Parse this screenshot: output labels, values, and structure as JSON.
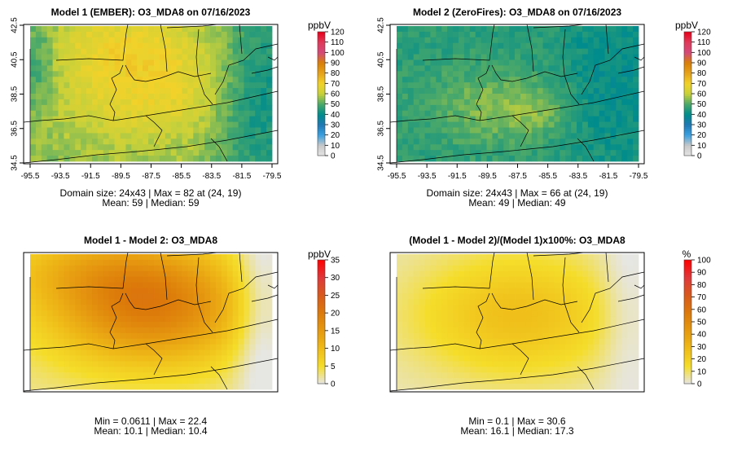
{
  "chart_data": [
    {
      "type": "heatmap",
      "title": "Model 1 (EMBER): O3_MDA8 on 07/16/2023",
      "unit": "ppbV",
      "colorbar_ticks": [
        "0",
        "10",
        "20",
        "30",
        "40",
        "50",
        "60",
        "70",
        "80",
        "90",
        "100",
        "110",
        "120"
      ],
      "xticks": [
        "-95.5",
        "-93.5",
        "-91.5",
        "-89.5",
        "-87.5",
        "-85.5",
        "-83.5",
        "-81.5",
        "-79.5"
      ],
      "yticks": [
        "34.5",
        "36.5",
        "38.5",
        "40.5",
        "42.5"
      ],
      "xlim": [
        -95.5,
        -79.5
      ],
      "ylim": [
        34.5,
        42.5
      ],
      "grid_size": [
        24,
        43
      ],
      "range": [
        0,
        120
      ],
      "info_line1": "Domain size: 24x43 | Max = 82 at (24, 19)",
      "info_line2": "Mean: 59 |  Median: 59"
    },
    {
      "type": "heatmap",
      "title": "Model 2 (ZeroFires): O3_MDA8 on 07/16/2023",
      "unit": "ppbV",
      "colorbar_ticks": [
        "0",
        "10",
        "20",
        "30",
        "40",
        "50",
        "60",
        "70",
        "80",
        "90",
        "100",
        "110",
        "120"
      ],
      "xticks": [
        "-95.5",
        "-93.5",
        "-91.5",
        "-89.5",
        "-87.5",
        "-85.5",
        "-83.5",
        "-81.5",
        "-79.5"
      ],
      "yticks": [
        "34.5",
        "36.5",
        "38.5",
        "40.5",
        "42.5"
      ],
      "xlim": [
        -95.5,
        -79.5
      ],
      "ylim": [
        34.5,
        42.5
      ],
      "grid_size": [
        24,
        43
      ],
      "range": [
        0,
        120
      ],
      "info_line1": "Domain size: 24x43 | Max = 66 at (24, 19)",
      "info_line2": "Mean: 49 |  Median: 49"
    },
    {
      "type": "heatmap",
      "title": "Model 1 - Model 2: O3_MDA8",
      "unit": "ppbV",
      "colorbar_ticks": [
        "0",
        "5",
        "10",
        "15",
        "20",
        "25",
        "30",
        "35"
      ],
      "range": [
        0,
        35
      ],
      "info_line1": "Min = 0.0611 | Max = 22.4",
      "info_line2": "Mean: 10.1 |  Median: 10.4"
    },
    {
      "type": "heatmap",
      "title": "(Model 1 - Model 2)/(Model 1)x100%: O3_MDA8",
      "unit": "%",
      "colorbar_ticks": [
        "0",
        "10",
        "20",
        "30",
        "40",
        "50",
        "60",
        "70",
        "80",
        "90",
        "100"
      ],
      "range": [
        0,
        100
      ],
      "info_line1": "Min = 0.1 | Max = 30.6",
      "info_line2": "Mean: 16.1 |  Median: 17.3"
    }
  ],
  "colors": {
    "conc_scale": [
      "#e6e6e6",
      "#c8c8c8",
      "#3ba0e0",
      "#1f78b4",
      "#008c8c",
      "#49a86a",
      "#c8d13a",
      "#f2d22a",
      "#e6a21a",
      "#d98008",
      "#d34a7a",
      "#e03a5a",
      "#e8001a"
    ],
    "diff_scale": [
      "#e6e6e6",
      "#f5dd2a",
      "#efbb18",
      "#e69a10",
      "#dc7a0a",
      "#d85a1c",
      "#e0383a",
      "#ff0000"
    ]
  }
}
